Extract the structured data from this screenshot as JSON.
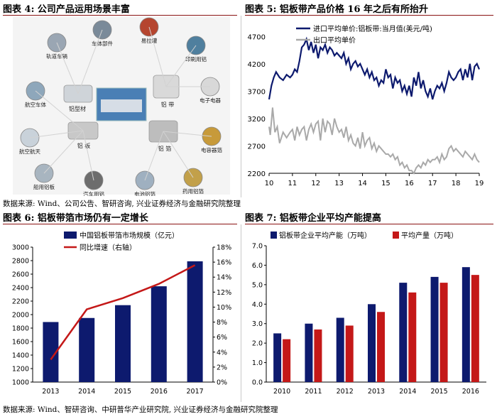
{
  "fig4": {
    "title": "图表 4:  公司产品运用场景丰富",
    "center_label": "",
    "nodes": [
      {
        "label": "车体部件",
        "icon": "car-body-parts"
      },
      {
        "label": "易拉罐",
        "icon": "cans"
      },
      {
        "label": "印刷用铝",
        "icon": "printing-plate"
      },
      {
        "label": "轨道车辆",
        "icon": "rail-vehicle"
      },
      {
        "label": "电子电器",
        "icon": "electronics"
      },
      {
        "label": "航空车体",
        "icon": "aviation-body"
      },
      {
        "label": "航空航天",
        "icon": "aerospace"
      },
      {
        "label": "电容器箔",
        "icon": "capacitor-foil"
      },
      {
        "label": "船用铝板",
        "icon": "ship-plate"
      },
      {
        "label": "汽车用铝",
        "icon": "auto-aluminum"
      },
      {
        "label": "电池铝箔",
        "icon": "battery-foil"
      },
      {
        "label": "药用铝箔",
        "icon": "pharma-foil"
      }
    ],
    "hubs": [
      {
        "label": "铝型材"
      },
      {
        "label": "铝  带"
      },
      {
        "label": "铝  板"
      },
      {
        "label": "铝  箔"
      }
    ]
  },
  "fig5": {
    "title": "图表 5:  铝板带产品价格 16 年之后有所抬升",
    "chart_data": {
      "type": "line",
      "x_ticks": [
        "10",
        "11",
        "12",
        "13",
        "14",
        "15",
        "16",
        "17",
        "18",
        "19"
      ],
      "ylim": [
        2200,
        4950
      ],
      "y_ticks": [
        2200,
        2700,
        3200,
        3700,
        4200,
        4700
      ],
      "legend_position": "top-right",
      "series": [
        {
          "name": "进口平均单价:铝板带:当月值(美元/吨)",
          "color": "#0d1a6e",
          "x": [
            10.0,
            10.1,
            10.2,
            10.3,
            10.45,
            10.6,
            10.75,
            10.9,
            11.0,
            11.1,
            11.2,
            11.3,
            11.4,
            11.5,
            11.6,
            11.7,
            11.8,
            11.9,
            12.0,
            12.1,
            12.2,
            12.3,
            12.4,
            12.5,
            12.6,
            12.7,
            12.8,
            12.9,
            13.0,
            13.1,
            13.2,
            13.3,
            13.4,
            13.5,
            13.6,
            13.7,
            13.8,
            13.9,
            14.0,
            14.1,
            14.2,
            14.3,
            14.4,
            14.5,
            14.6,
            14.7,
            14.8,
            14.9,
            15.0,
            15.1,
            15.2,
            15.3,
            15.4,
            15.5,
            15.6,
            15.7,
            15.8,
            15.9,
            16.0,
            16.1,
            16.2,
            16.3,
            16.4,
            16.5,
            16.6,
            16.7,
            16.8,
            16.9,
            17.0,
            17.1,
            17.2,
            17.3,
            17.4,
            17.5,
            17.6,
            17.7,
            17.8,
            17.9,
            18.0,
            18.1,
            18.2,
            18.3,
            18.4,
            18.5,
            18.6,
            18.7,
            18.8,
            18.9,
            19.0
          ],
          "values": [
            3550,
            3800,
            3950,
            4050,
            3950,
            3900,
            4000,
            3950,
            4000,
            4100,
            4050,
            4250,
            4500,
            4550,
            4650,
            4450,
            4600,
            4400,
            4550,
            4300,
            4500,
            4450,
            4550,
            4400,
            4500,
            4450,
            4350,
            4400,
            4350,
            4300,
            4400,
            4200,
            4300,
            4100,
            4200,
            4250,
            4150,
            4200,
            4100,
            4000,
            4100,
            3950,
            4050,
            3900,
            3950,
            3800,
            3900,
            3850,
            4100,
            3950,
            4000,
            3750,
            3950,
            3850,
            3900,
            3700,
            3800,
            3650,
            3800,
            3600,
            3950,
            3800,
            4050,
            3750,
            3900,
            3700,
            3600,
            3750,
            3550,
            3700,
            3800,
            3750,
            3850,
            3700,
            3850,
            4050,
            3950,
            3900,
            3950,
            4050,
            4100,
            3900,
            4100,
            3950,
            4200,
            3900,
            4150,
            4200,
            4100
          ]
        },
        {
          "name": "出口平均单价",
          "color": "#a9a9a9",
          "x": [
            10.0,
            10.05,
            10.15,
            10.25,
            10.35,
            10.45,
            10.6,
            10.75,
            10.9,
            11.0,
            11.1,
            11.2,
            11.3,
            11.4,
            11.5,
            11.6,
            11.7,
            11.8,
            11.9,
            12.0,
            12.1,
            12.2,
            12.3,
            12.4,
            12.5,
            12.6,
            12.7,
            12.8,
            12.9,
            13.0,
            13.1,
            13.2,
            13.3,
            13.4,
            13.5,
            13.6,
            13.7,
            13.8,
            13.9,
            14.0,
            14.1,
            14.2,
            14.3,
            14.4,
            14.5,
            14.6,
            14.7,
            14.8,
            14.9,
            15.0,
            15.1,
            15.2,
            15.3,
            15.4,
            15.5,
            15.6,
            15.7,
            15.8,
            15.9,
            16.0,
            16.1,
            16.2,
            16.3,
            16.4,
            16.5,
            16.6,
            16.7,
            16.8,
            16.9,
            17.0,
            17.1,
            17.2,
            17.3,
            17.4,
            17.5,
            17.6,
            17.7,
            17.8,
            17.9,
            18.0,
            18.1,
            18.2,
            18.3,
            18.4,
            18.5,
            18.6,
            18.7,
            18.8,
            18.9,
            19.0
          ],
          "values": [
            3050,
            2900,
            3400,
            2950,
            3050,
            2750,
            2950,
            2850,
            2950,
            3000,
            2800,
            3050,
            2900,
            3000,
            3050,
            2800,
            3000,
            3100,
            2950,
            3100,
            3150,
            2800,
            3200,
            2950,
            3150,
            3100,
            2900,
            3200,
            3050,
            2950,
            3000,
            2850,
            3050,
            2800,
            2900,
            2750,
            2700,
            2850,
            2650,
            2950,
            2700,
            2800,
            2850,
            2650,
            2750,
            2600,
            2700,
            2650,
            2600,
            2550,
            2550,
            2500,
            2550,
            2450,
            2500,
            2350,
            2400,
            2300,
            2350,
            2250,
            2250,
            2200,
            2300,
            2350,
            2300,
            2400,
            2350,
            2450,
            2400,
            2450,
            2450,
            2500,
            2400,
            2550,
            2450,
            2500,
            2650,
            2700,
            2600,
            2650,
            2600,
            2550,
            2500,
            2600,
            2550,
            2500,
            2450,
            2550,
            2450,
            2400
          ]
        }
      ]
    }
  },
  "fig6": {
    "title": "图表 6:  铝板带箔市场仍有一定增长",
    "chart_data": {
      "type": "bar",
      "categories": [
        "2013",
        "2014",
        "2015",
        "2016",
        "2017"
      ],
      "ylim": [
        1000,
        3000
      ],
      "y_ticks": [
        1000,
        1200,
        1400,
        1600,
        1800,
        2000,
        2200,
        2400,
        2600,
        2800,
        3000
      ],
      "y2lim": [
        0,
        18
      ],
      "y2_ticks": [
        "0%",
        "2%",
        "4%",
        "6%",
        "8%",
        "10%",
        "12%",
        "14%",
        "16%",
        "18%"
      ],
      "legend_position": "top-left",
      "series": [
        {
          "name": "中国铝板带箔市场规模（亿元）",
          "type": "bar",
          "color": "#0d1a6e",
          "values": [
            1890,
            1950,
            2140,
            2420,
            2790
          ]
        },
        {
          "name": "同比增速（右轴）",
          "type": "line",
          "color": "#c41818",
          "axis": "right",
          "values": [
            3.0,
            9.7,
            11.2,
            13.1,
            15.6
          ]
        }
      ]
    }
  },
  "fig7": {
    "title": "图表 7:  铝板带企业平均产能提高",
    "chart_data": {
      "type": "bar",
      "categories": [
        "2010",
        "2011",
        "2012",
        "2013",
        "2014",
        "2015",
        "2016"
      ],
      "ylim": [
        0,
        7
      ],
      "y_ticks": [
        "0.0",
        "1.0",
        "2.0",
        "3.0",
        "4.0",
        "5.0",
        "6.0",
        "7.0"
      ],
      "legend_position": "top",
      "series": [
        {
          "name": "铝板带企业平均产能（万吨）",
          "color": "#0d1a6e",
          "values": [
            2.5,
            3.0,
            3.3,
            4.0,
            5.1,
            5.4,
            5.9
          ]
        },
        {
          "name": "平均产量（万吨）",
          "color": "#c41818",
          "values": [
            2.2,
            2.7,
            2.9,
            3.6,
            4.6,
            5.1,
            5.5
          ]
        }
      ]
    }
  },
  "sources": {
    "top": "数据来源: Wind、公司公告、智研咨询, 兴业证券经济与金融研究院整理",
    "bottom": "数据来源: Wind、智研咨询、中研普华产业研究院, 兴业证券经济与金融研究院整理"
  }
}
